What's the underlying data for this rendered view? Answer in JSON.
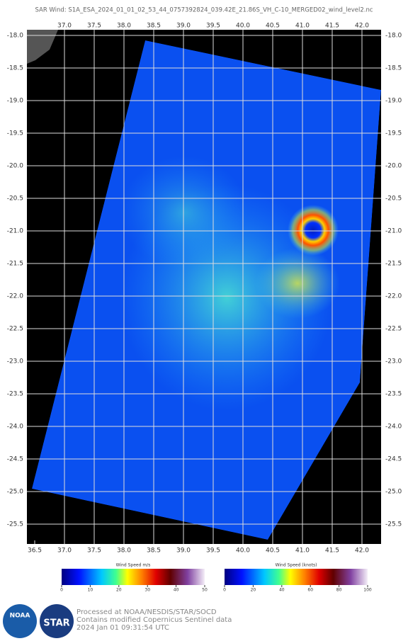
{
  "title": "SAR Wind: S1A_ESA_2024_01_01_02_53_44_0757392824_039.42E_21.86S_VH_C-10_MERGED02_wind_level2.nc",
  "map": {
    "lon_ticks_top": [
      {
        "value": 37,
        "label": "37.0"
      },
      37.5,
      {
        "value": 38,
        "label": "38.0"
      },
      38.5,
      {
        "value": 39,
        "label": "39.0"
      },
      39.5,
      {
        "value": 40,
        "label": "40.0"
      },
      40.5,
      {
        "value": 41,
        "label": "41.0"
      },
      41.5,
      {
        "value": 42,
        "label": "42.0"
      }
    ],
    "lon_ticks_bottom": [
      36.5,
      {
        "value": 37,
        "label": "37.0"
      },
      37.5,
      {
        "value": 38,
        "label": "38.0"
      },
      38.5,
      {
        "value": 39,
        "label": "39.0"
      },
      39.5,
      {
        "value": 40,
        "label": "40.0"
      },
      40.5,
      {
        "value": 41,
        "label": "41.0"
      },
      41.5,
      {
        "value": 42,
        "label": "42.0"
      }
    ],
    "lat_ticks": [
      {
        "value": -18,
        "label": "-18.0"
      },
      -18.5,
      {
        "value": -19,
        "label": "-19.0"
      },
      -19.5,
      {
        "value": -20,
        "label": "-20.0"
      },
      -20.5,
      {
        "value": -21,
        "label": "-21.0"
      },
      -21.5,
      {
        "value": -22,
        "label": "-22.0"
      },
      -22.5,
      {
        "value": -23,
        "label": "-23.0"
      },
      -23.5,
      {
        "value": -24,
        "label": "-24.0"
      },
      -24.5,
      {
        "value": -25,
        "label": "-25.0"
      },
      -25.5
    ]
  },
  "colorbars": [
    {
      "title": "Wind Speed m/s",
      "ticks": [
        0,
        10,
        20,
        30,
        40,
        50
      ]
    },
    {
      "title": "Wind Speed (knots)",
      "ticks": [
        0,
        20,
        40,
        60,
        80,
        100
      ]
    }
  ],
  "logos": [
    "NOAA",
    "STAR"
  ],
  "credits": [
    "Processed at NOAA/NESDIS/STAR/SOCD",
    "Contains modified Copernicus Sentinel data",
    "2024 Jan 01 09:31:54 UTC"
  ]
}
